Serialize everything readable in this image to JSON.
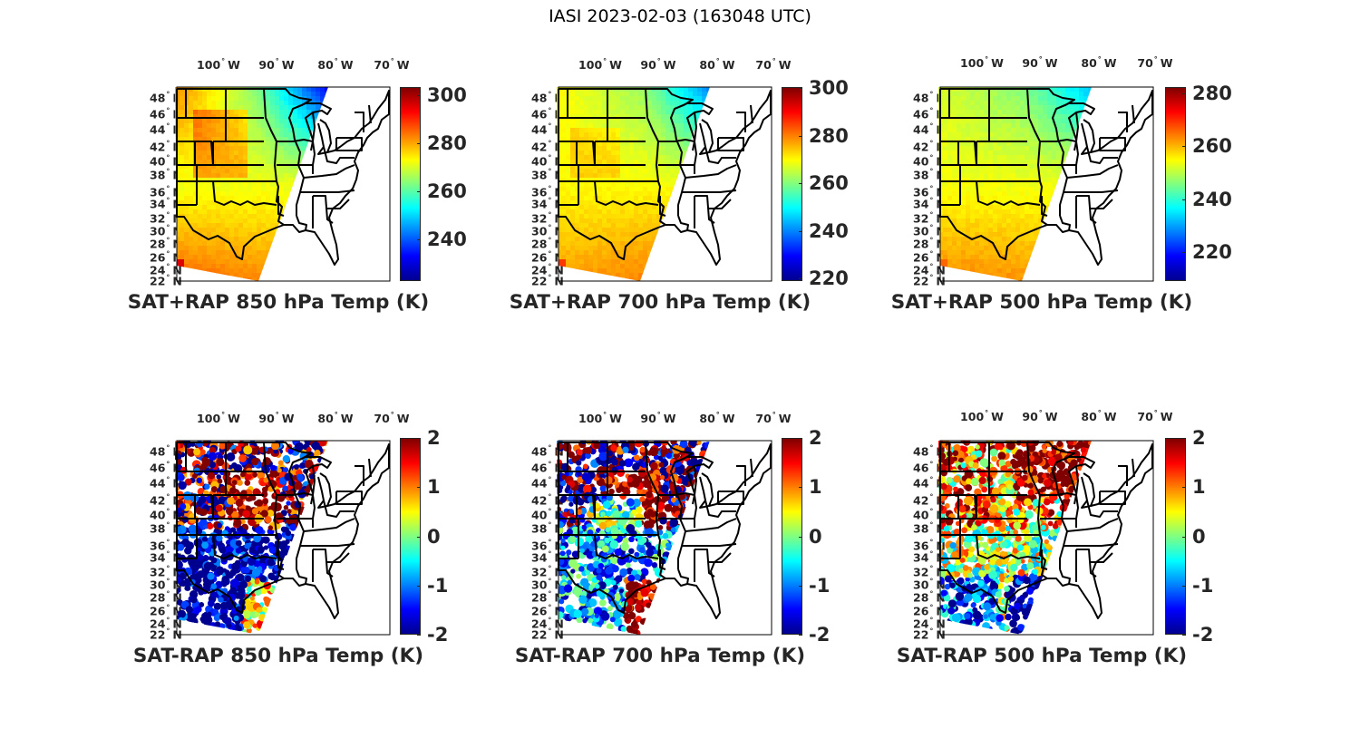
{
  "figure": {
    "title": "IASI 2023-02-03 (163048 UTC)"
  },
  "colors": {
    "jet": [
      "#00008f",
      "#0000ff",
      "#0080ff",
      "#00ffff",
      "#80ff80",
      "#ffff00",
      "#ff8000",
      "#ff0000",
      "#800000"
    ],
    "outline": "#000000",
    "text": "#262626"
  },
  "axes": {
    "lon_labels": [
      "100",
      "90",
      "80",
      "70"
    ],
    "lon_suffix": "W",
    "lat_labels": [
      "48",
      "46",
      "44",
      "42",
      "40",
      "38",
      "36",
      "34",
      "32",
      "30",
      "28",
      "26",
      "24",
      "22"
    ],
    "lat_suffix": "N",
    "degree_symbol": "°"
  },
  "panels": [
    {
      "id": "sat-rap-850-temp",
      "title": "SAT+RAP 850 hPa Temp (K)",
      "kind": "temperature",
      "colorbar": {
        "range": [
          222.6,
          303.4
        ],
        "ticks": [
          "240",
          "260",
          "280",
          "300"
        ],
        "tick_values": [
          240,
          260,
          280,
          300
        ]
      },
      "field": {
        "north_west": 282,
        "north_center": 262,
        "north_east": 232,
        "south_west": 286,
        "south_center": 280,
        "central": 272,
        "hot_spot": 296
      }
    },
    {
      "id": "sat-rap-700-temp",
      "title": "SAT+RAP 700 hPa Temp (K)",
      "kind": "temperature",
      "colorbar": {
        "range": [
          219,
          300.5
        ],
        "ticks": [
          "220",
          "240",
          "260",
          "280",
          "300"
        ],
        "tick_values": [
          220,
          240,
          260,
          280,
          300
        ]
      },
      "field": {
        "north_west": 270,
        "north_center": 262,
        "north_east": 240,
        "south_west": 278,
        "south_center": 282,
        "central": 270,
        "hot_spot": 286
      }
    },
    {
      "id": "sat-rap-500-temp",
      "title": "SAT+RAP 500 hPa Temp (K)",
      "kind": "temperature",
      "colorbar": {
        "range": [
          209,
          282.4
        ],
        "ticks": [
          "220",
          "240",
          "260",
          "280"
        ],
        "tick_values": [
          220,
          240,
          260,
          280
        ]
      },
      "field": {
        "north_west": 252,
        "north_center": 246,
        "north_east": 232,
        "south_west": 264,
        "south_center": 262,
        "central": 254,
        "hot_spot": 266
      }
    },
    {
      "id": "sat-minus-rap-850-temp",
      "title": "SAT-RAP 850 hPa Temp (K)",
      "kind": "difference",
      "colorbar": {
        "range": [
          -2,
          2
        ],
        "ticks": [
          "2",
          "1",
          "0",
          "-1",
          "-2"
        ],
        "tick_values": [
          2,
          1,
          0,
          -1,
          -2
        ]
      },
      "field": {
        "north": 1.8,
        "north_scatter": -2,
        "south": -2,
        "coast": 0.5
      }
    },
    {
      "id": "sat-minus-rap-700-temp",
      "title": "SAT-RAP 700 hPa Temp (K)",
      "kind": "difference",
      "colorbar": {
        "range": [
          -2,
          2
        ],
        "ticks": [
          "2",
          "1",
          "0",
          "-1",
          "-2"
        ],
        "tick_values": [
          2,
          1,
          0,
          -1,
          -2
        ]
      },
      "field": {
        "north": 2,
        "north_scatter": -2,
        "south": -0.9,
        "coast": 2
      }
    },
    {
      "id": "sat-minus-rap-500-temp",
      "title": "SAT-RAP 500 hPa Temp (K)",
      "kind": "difference",
      "colorbar": {
        "range": [
          -2,
          2
        ],
        "ticks": [
          "2",
          "1",
          "0",
          "-1",
          "-2"
        ],
        "tick_values": [
          2,
          1,
          0,
          -1,
          -2
        ]
      },
      "field": {
        "north": 0.6,
        "north_scatter": 2,
        "south": 0.2,
        "coast": -2
      }
    }
  ]
}
